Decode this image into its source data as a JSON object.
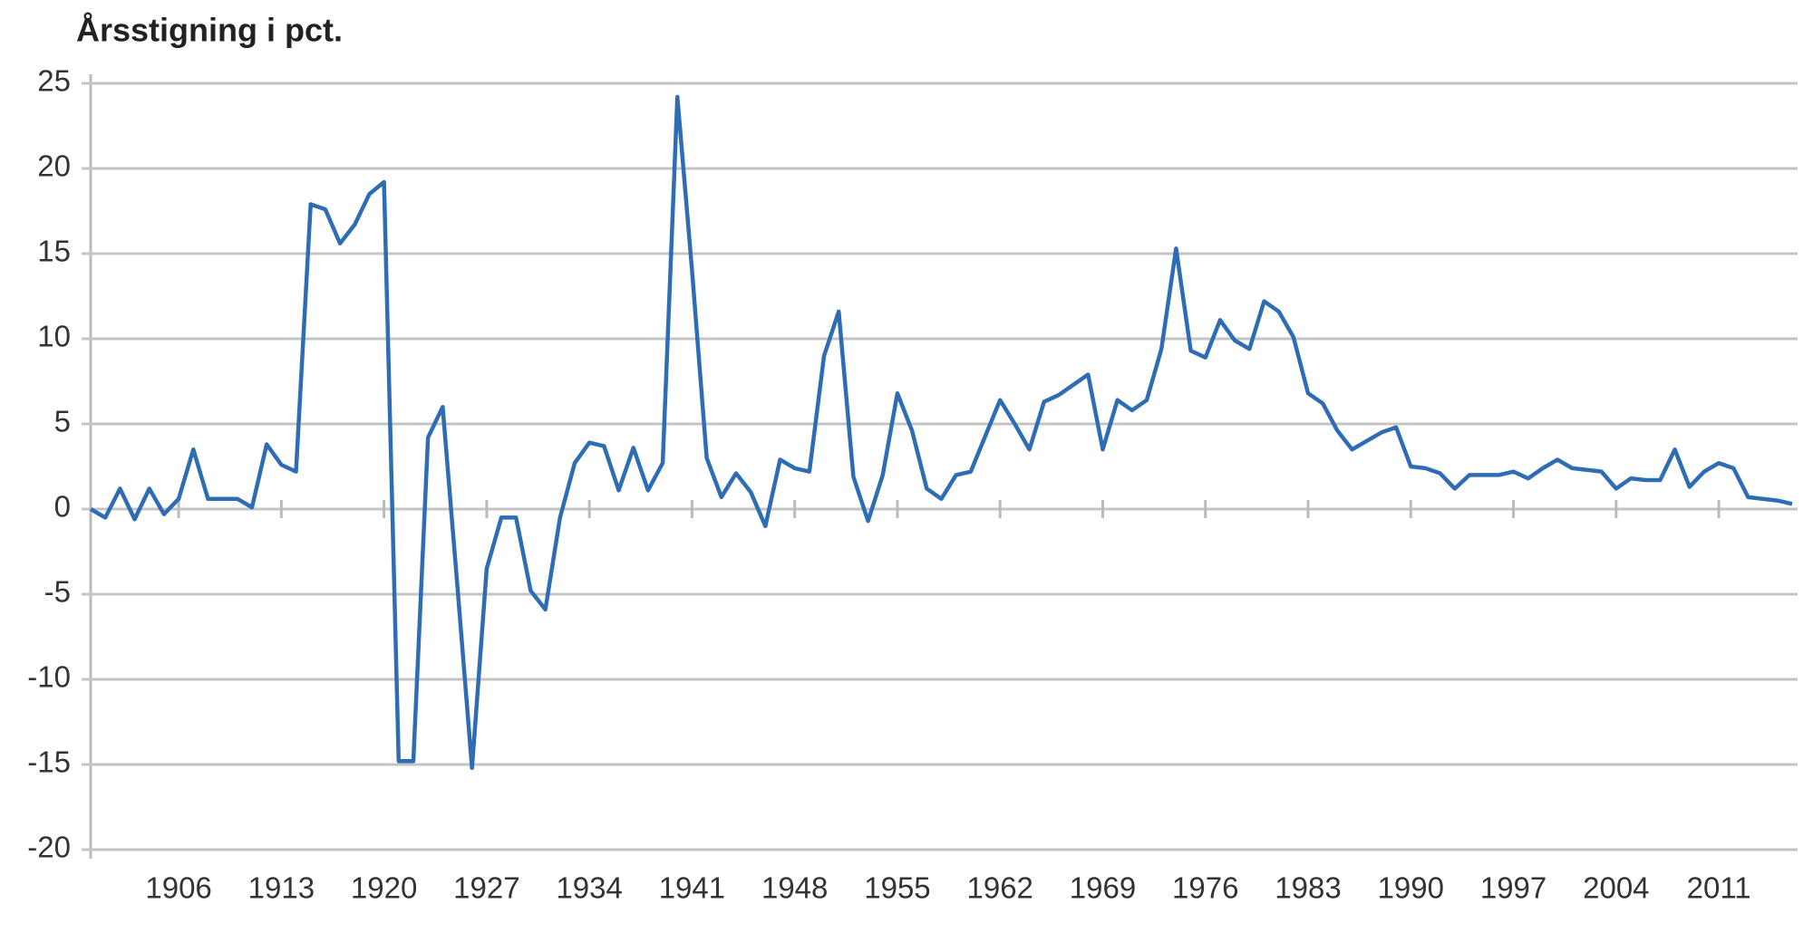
{
  "chart_data": {
    "type": "line",
    "title": "Årsstigning i pct.",
    "x": [
      1900,
      1901,
      1902,
      1903,
      1904,
      1905,
      1906,
      1907,
      1908,
      1909,
      1910,
      1911,
      1912,
      1913,
      1914,
      1915,
      1916,
      1917,
      1918,
      1919,
      1920,
      1921,
      1922,
      1923,
      1924,
      1925,
      1926,
      1927,
      1928,
      1929,
      1930,
      1931,
      1932,
      1933,
      1934,
      1935,
      1936,
      1937,
      1938,
      1939,
      1940,
      1941,
      1942,
      1943,
      1944,
      1945,
      1946,
      1947,
      1948,
      1949,
      1950,
      1951,
      1952,
      1953,
      1954,
      1955,
      1956,
      1957,
      1958,
      1959,
      1960,
      1961,
      1962,
      1963,
      1964,
      1965,
      1966,
      1967,
      1968,
      1969,
      1970,
      1971,
      1972,
      1973,
      1974,
      1975,
      1976,
      1977,
      1978,
      1979,
      1980,
      1981,
      1982,
      1983,
      1984,
      1985,
      1986,
      1987,
      1988,
      1989,
      1990,
      1991,
      1992,
      1993,
      1994,
      1995,
      1996,
      1997,
      1998,
      1999,
      2000,
      2001,
      2002,
      2003,
      2004,
      2005,
      2006,
      2007,
      2008,
      2009,
      2010,
      2011,
      2012,
      2013,
      2014,
      2015,
      2016
    ],
    "series": [
      {
        "color": "#2e6db4",
        "values": [
          0,
          -0.5,
          1.2,
          -0.6,
          1.2,
          -0.3,
          0.6,
          3.5,
          0.6,
          0.6,
          0.6,
          0.1,
          3.8,
          2.6,
          2.2,
          17.9,
          17.6,
          15.6,
          16.7,
          18.5,
          19.2,
          -14.8,
          -14.8,
          4.2,
          6.0,
          -4.5,
          -15.2,
          -3.5,
          -0.5,
          -0.5,
          -4.8,
          -5.9,
          -0.5,
          2.7,
          3.9,
          3.7,
          1.1,
          3.6,
          1.1,
          2.7,
          24.2,
          14,
          3.0,
          0.7,
          2.1,
          1.0,
          -1.0,
          2.9,
          2.4,
          2.2,
          9.0,
          11.6,
          1.9,
          -0.7,
          2.0,
          6.8,
          4.6,
          1.2,
          0.6,
          2.0,
          2.2,
          4.3,
          6.4,
          5.0,
          3.5,
          6.3,
          6.7,
          7.3,
          7.9,
          3.5,
          6.4,
          5.8,
          6.4,
          9.4,
          15.3,
          9.3,
          8.9,
          11.1,
          9.9,
          9.4,
          12.2,
          11.6,
          10.1,
          6.8,
          6.2,
          4.6,
          3.5,
          4.0,
          4.5,
          4.8,
          2.5,
          2.4,
          2.1,
          1.2,
          2.0,
          2.0,
          2.0,
          2.2,
          1.8,
          2.4,
          2.9,
          2.4,
          2.3,
          2.2,
          1.2,
          1.8,
          1.7,
          1.7,
          3.5,
          1.3,
          2.2,
          2.7,
          2.4,
          0.7,
          0.6,
          0.5,
          0.3
        ]
      }
    ],
    "xlim": [
      1900,
      2016
    ],
    "xticks": [
      1906,
      1913,
      1920,
      1927,
      1934,
      1941,
      1948,
      1955,
      1962,
      1969,
      1976,
      1983,
      1990,
      1997,
      2004,
      2011
    ],
    "ylim": [
      -20,
      25
    ],
    "yticks": [
      -20,
      -15,
      -10,
      -5,
      0,
      5,
      10,
      15,
      20,
      25
    ],
    "grid": true
  }
}
